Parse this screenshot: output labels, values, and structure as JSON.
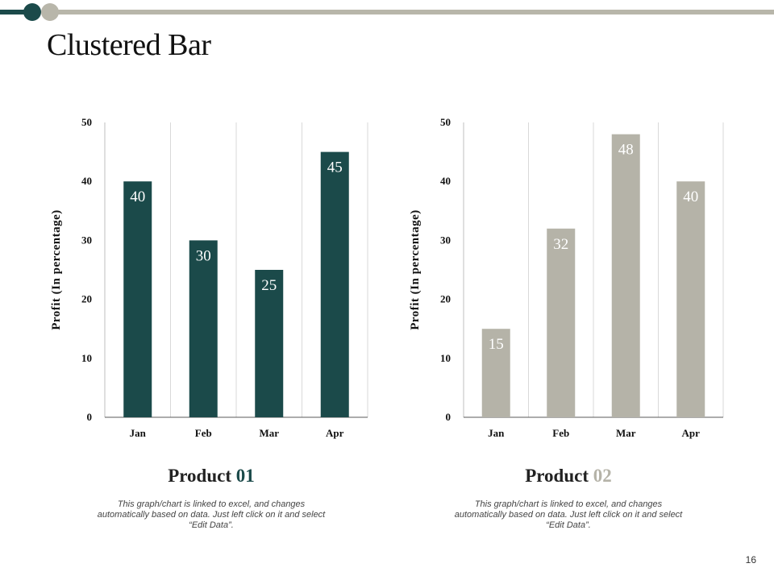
{
  "slide": {
    "title": "Clustered Bar",
    "page_number": "16",
    "colors": {
      "bar1": "#1b4a4a",
      "bar2": "#b5b3a8",
      "accent_gray": "#b8b6aa",
      "grid": "#d9d9d9"
    }
  },
  "products": [
    {
      "title": "Product",
      "num": "01",
      "num_color": "#1b4a4a",
      "description": "This graph/chart is linked to excel, and changes automatically based on data. Just left click on it and select “Edit Data”."
    },
    {
      "title": "Product",
      "num": "02",
      "num_color": "#b5b3a8",
      "description": "This graph/chart is linked to excel, and changes automatically based on data. Just left click on it and select “Edit Data”."
    }
  ],
  "chart_data": [
    {
      "type": "bar",
      "categories": [
        "Jan",
        "Feb",
        "Mar",
        "Apr"
      ],
      "values": [
        40,
        30,
        25,
        45
      ],
      "title": "Product 01",
      "xlabel": "",
      "ylabel": "Profit  (In percentage)",
      "ylim": [
        0,
        50
      ],
      "yticks": [
        0,
        10,
        20,
        30,
        40,
        50
      ],
      "bar_color": "#1b4a4a",
      "label_color": "#ffffff",
      "grid": true
    },
    {
      "type": "bar",
      "categories": [
        "Jan",
        "Feb",
        "Mar",
        "Apr"
      ],
      "values": [
        15,
        32,
        48,
        40
      ],
      "title": "Product 02",
      "xlabel": "",
      "ylabel": "Profit  (In percentage)",
      "ylim": [
        0,
        50
      ],
      "yticks": [
        0,
        10,
        20,
        30,
        40,
        50
      ],
      "bar_color": "#b5b3a8",
      "label_color": "#ffffff",
      "grid": true
    }
  ]
}
